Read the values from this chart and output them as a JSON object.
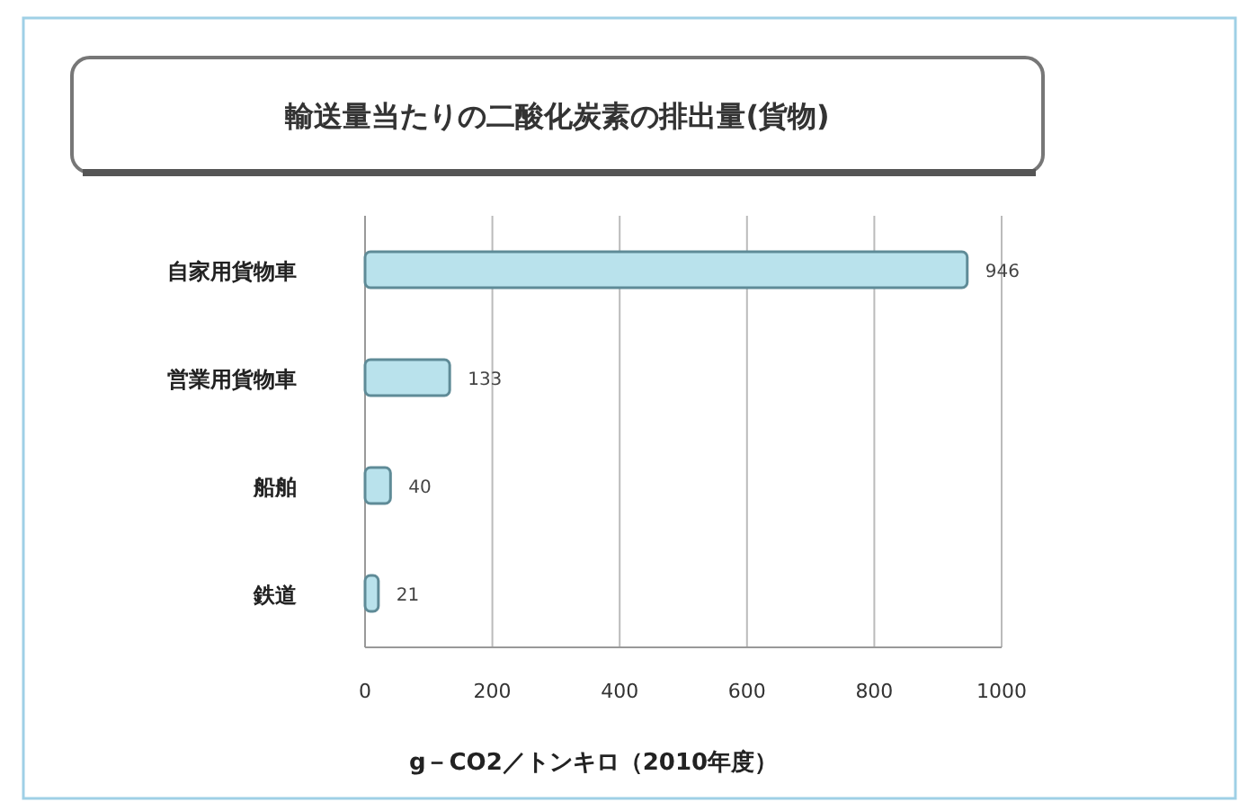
{
  "chart_data": {
    "type": "bar",
    "orientation": "horizontal",
    "title": "輸送量当たりの二酸化炭素の排出量(貨物)",
    "xlabel": "g－CO2／トンキロ（2010年度）",
    "categories": [
      "自家用貨物車",
      "営業用貨物車",
      "船舶",
      "鉄道"
    ],
    "values": [
      946,
      133,
      40,
      21
    ],
    "color": "#b9e2ec",
    "xlim": [
      0,
      1000
    ],
    "xticks": [
      0,
      200,
      400,
      600,
      800,
      1000
    ],
    "grid": "x",
    "data_labels": true
  }
}
